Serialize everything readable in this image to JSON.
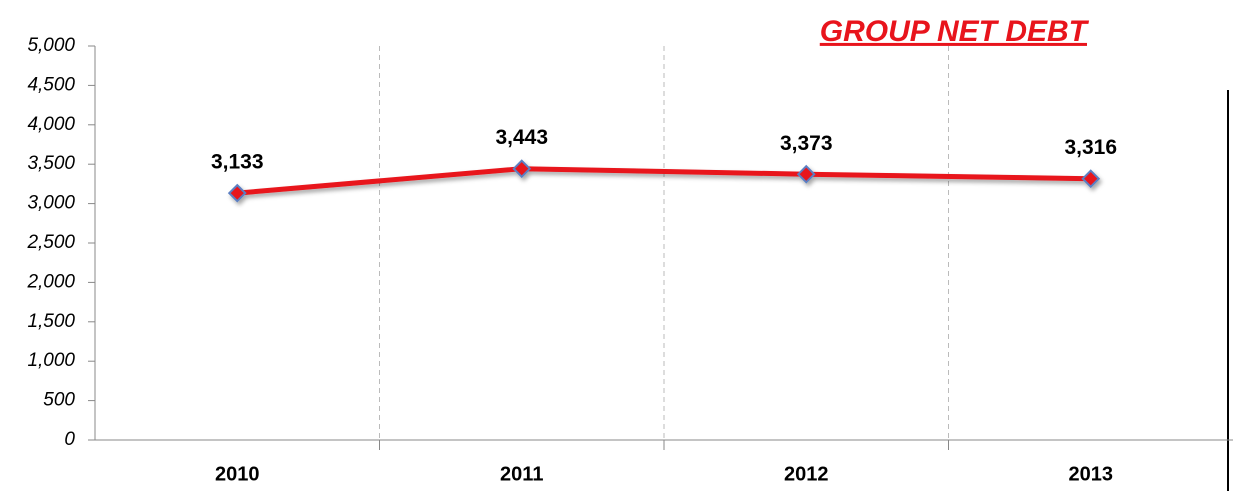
{
  "chart_data": {
    "type": "line",
    "title": "GROUP NET DEBT",
    "categories": [
      "2010",
      "2011",
      "2012",
      "2013"
    ],
    "series": [
      {
        "name": "Group net debt",
        "color": "#e8141c",
        "values": [
          3133,
          3443,
          3373,
          3316
        ],
        "value_labels": [
          "3,133",
          "3,443",
          "3,373",
          "3,316"
        ]
      }
    ],
    "ylim": [
      0,
      5000
    ],
    "yticks": [
      0,
      500,
      {
        "value": 1000,
        "label": "1,000"
      },
      {
        "value": 1500,
        "label": "1,500"
      },
      {
        "value": 2000,
        "label": "2,000"
      },
      {
        "value": 2500,
        "label": "2,500"
      },
      {
        "value": 3000,
        "label": "3,000"
      },
      {
        "value": 3500,
        "label": "3,500"
      },
      {
        "value": 4000,
        "label": "4,000"
      },
      {
        "value": 4500,
        "label": "4,500"
      },
      {
        "value": 5000,
        "label": "5,000"
      }
    ],
    "marker_color": "#e8141c",
    "marker_edge_color": "#5b7fc2"
  }
}
